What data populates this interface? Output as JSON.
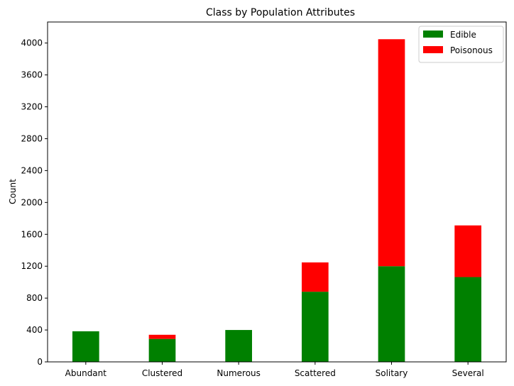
{
  "chart_data": {
    "type": "bar",
    "stacked": true,
    "title": "Class by Population Attributes",
    "xlabel": "",
    "ylabel": "Count",
    "categories": [
      "Abundant",
      "Clustered",
      "Numerous",
      "Scattered",
      "Solitary",
      "Several"
    ],
    "series": [
      {
        "name": "Edible",
        "color": "#008000",
        "values": [
          384,
          288,
          400,
          880,
          1200,
          1064
        ]
      },
      {
        "name": "Poisonous",
        "color": "#ff0000",
        "values": [
          0,
          52,
          0,
          368,
          2848,
          648
        ]
      }
    ],
    "ylim": [
      0,
      4264
    ],
    "yticks": [
      0,
      400,
      800,
      1200,
      1600,
      2000,
      2400,
      2800,
      3200,
      3600,
      4000
    ],
    "grid": false,
    "legend": "top-right"
  }
}
